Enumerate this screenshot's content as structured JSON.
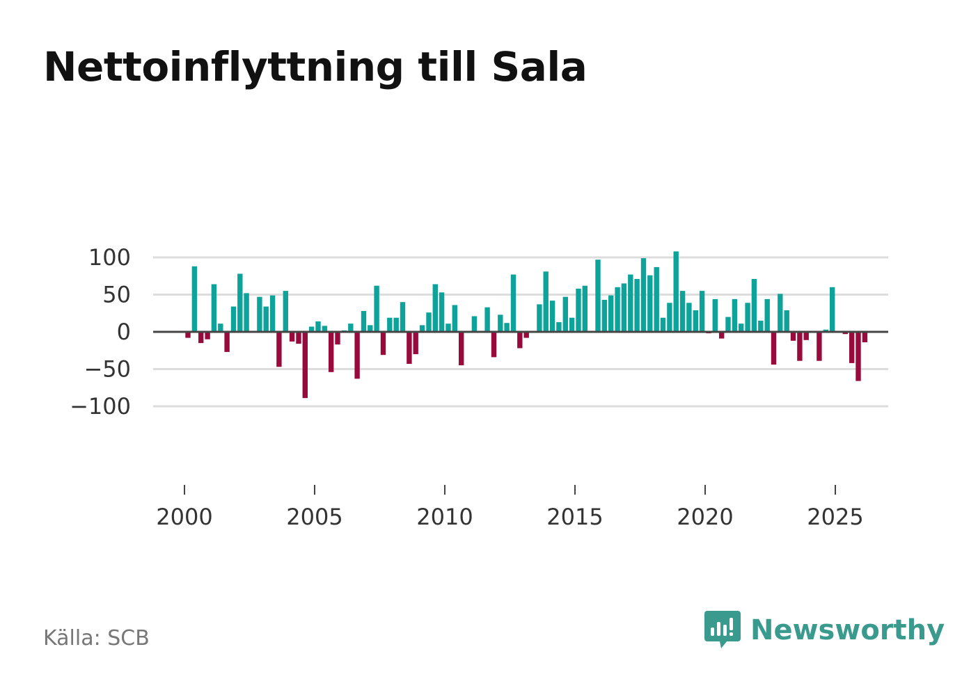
{
  "title": "Nettoinflyttning till Sala",
  "source": "Källa: SCB",
  "brand": {
    "name": "Newsworthy",
    "icon": "bar-chart-speech-bubble-icon"
  },
  "colors": {
    "positive": "#0ea39a",
    "negative": "#990a3c",
    "grid": "#dddddd",
    "zero": "#444444",
    "brand": "#3a9a8e"
  },
  "chart_data": {
    "type": "bar",
    "title": "Nettoinflyttning till Sala",
    "xlabel": "",
    "ylabel": "",
    "frequency": "quarterly",
    "x_start": 2000.0,
    "x_step": 0.25,
    "xlim": [
      1997.6,
      2027.0
    ],
    "ylim": [
      -100,
      100
    ],
    "y_ticks": [
      100,
      50,
      0,
      -50,
      -100
    ],
    "y_tick_labels": [
      "100",
      "50",
      "0",
      "−50",
      "−100"
    ],
    "x_ticks": [
      2000,
      2005,
      2010,
      2015,
      2020,
      2025
    ],
    "x_tick_labels": [
      "2000",
      "2005",
      "2010",
      "2015",
      "2020",
      "2025"
    ],
    "values": [
      -8,
      88,
      -15,
      -10,
      64,
      11,
      -27,
      34,
      78,
      52,
      1,
      47,
      34,
      49,
      -47,
      55,
      -13,
      -16,
      -89,
      7,
      14,
      8,
      -54,
      -17,
      2,
      11,
      -63,
      28,
      9,
      62,
      -31,
      19,
      19,
      40,
      -43,
      -30,
      9,
      26,
      64,
      53,
      11,
      36,
      -45,
      0,
      21,
      0,
      33,
      -34,
      23,
      12,
      77,
      -22,
      -8,
      0,
      37,
      81,
      42,
      13,
      47,
      19,
      58,
      62,
      0,
      97,
      43,
      49,
      60,
      65,
      77,
      71,
      99,
      76,
      87,
      19,
      39,
      108,
      55,
      39,
      29,
      55,
      -2,
      44,
      -9,
      20,
      44,
      11,
      39,
      71,
      15,
      44,
      -44,
      51,
      29,
      -12,
      -39,
      -11,
      0,
      -39,
      3,
      60,
      1,
      -3,
      -42,
      -66,
      -14
    ]
  }
}
